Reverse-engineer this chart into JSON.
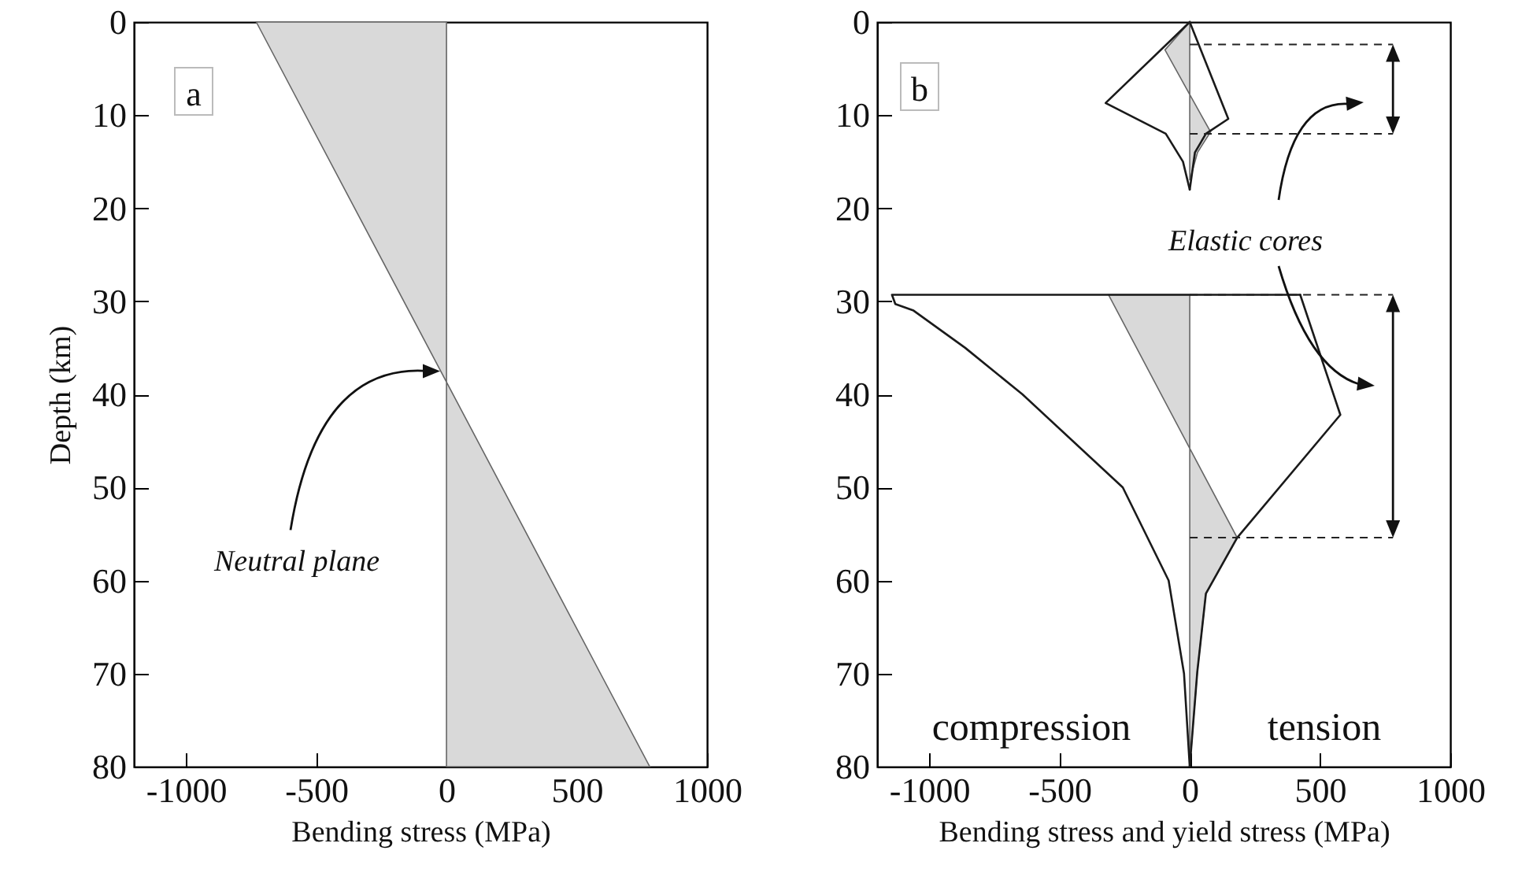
{
  "chart_data": [
    {
      "type": "area",
      "orientation": "horizontal",
      "xlabel": "Bending stress (MPa)",
      "ylabel": "Depth (km)",
      "xlim": [
        -1200,
        1000
      ],
      "xticks": [
        -1000,
        -500,
        0,
        500,
        1000
      ],
      "ylim": [
        80,
        0
      ],
      "yticks": [
        0,
        10,
        20,
        30,
        40,
        50,
        60,
        70,
        80
      ],
      "grid": false,
      "series": [
        {
          "color": "#d9d9d9",
          "x": [
            0,
            80
          ],
          "values": [
            -730,
            780
          ]
        }
      ],
      "annotations": [
        "a",
        "Neutral plane"
      ]
    },
    {
      "type": "line",
      "orientation": "horizontal",
      "xlabel": "Bending stress and yield stress (MPa)",
      "xlim": [
        -1200,
        1000
      ],
      "xticks": [
        -1000,
        -500,
        0,
        500,
        1000
      ],
      "ylim": [
        80,
        0
      ],
      "yticks": [
        0,
        10,
        20,
        30,
        40,
        50,
        60,
        70,
        80
      ],
      "grid": false,
      "series": [
        {
          "type": "area",
          "color": "#d9d9d9",
          "x": [
            0,
            3,
            7.8,
            11.8,
            14,
            17,
            23,
            29.3,
            45.8,
            55.4,
            61.4,
            69.8,
            80
          ],
          "values": [
            0,
            -95,
            0,
            80,
            30,
            0,
            null,
            -312,
            0,
            182,
            62,
            29,
            0
          ]
        },
        {
          "color": "#1a1a1a",
          "x": [
            0,
            8.7,
            12,
            15,
            18
          ],
          "values": [
            0,
            -323,
            -92,
            -26,
            0
          ]
        },
        {
          "color": "#1a1a1a",
          "x": [
            0,
            10.4,
            12,
            14,
            18
          ],
          "values": [
            0,
            148,
            62,
            20,
            0
          ]
        },
        {
          "color": "#1a1a1a",
          "x": [
            29.3,
            29.3,
            30.3,
            31,
            35,
            40,
            50,
            60,
            70,
            80
          ],
          "values": [
            424,
            -1143,
            -1130,
            -1060,
            -862,
            -642,
            -257,
            -81,
            -22,
            0
          ]
        },
        {
          "color": "#1a1a1a",
          "x": [
            29.3,
            42.2,
            55.4,
            61.4,
            69.8,
            80
          ],
          "values": [
            424,
            578,
            182,
            62,
            29,
            0
          ]
        }
      ],
      "ref_lines": [
        {
          "axis": "y",
          "value": 2.4,
          "line_style": "dashed"
        },
        {
          "axis": "y",
          "value": 12,
          "line_style": "dashed"
        },
        {
          "axis": "y",
          "value": 29.3,
          "line_style": "dashed"
        },
        {
          "axis": "y",
          "value": 55.4,
          "line_style": "dashed"
        }
      ],
      "annotations": [
        "b",
        "Elastic cores",
        "compression",
        "tension"
      ]
    }
  ]
}
